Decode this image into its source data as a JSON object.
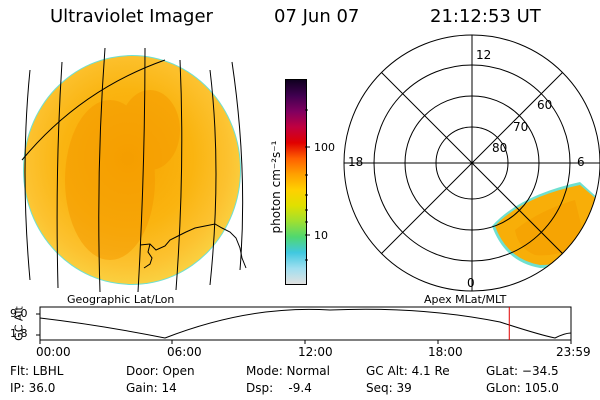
{
  "header": {
    "instrument": "Ultraviolet Imager",
    "date": "07 Jun 07",
    "time": "21:12:53 UT"
  },
  "left_panel": {
    "label": "Geographic Lat/Lon"
  },
  "right_panel": {
    "label": "Apex MLat/MLT",
    "mlt_labels": [
      "12",
      "18",
      "6",
      "0"
    ],
    "mlat_labels": [
      "60",
      "70",
      "80"
    ]
  },
  "colorbar": {
    "unit_label": "photon cm⁻²s⁻¹",
    "tick_labels": [
      "100",
      "10"
    ],
    "scale": "log",
    "colors": [
      "#e0e0e0",
      "#9fdff0",
      "#40c8e0",
      "#50d870",
      "#a0e030",
      "#e0e000",
      "#ffd000",
      "#ffa000",
      "#ff6000",
      "#e00000",
      "#c00040",
      "#800060",
      "#400050",
      "#100020"
    ]
  },
  "altitude_plot": {
    "ylabel": "GC Alt",
    "y_ticks": [
      "9.0",
      "1.8"
    ],
    "x_ticks": [
      "00:00",
      "06:00",
      "12:00",
      "18:00",
      "23:59"
    ],
    "current_time_hours": 21.21
  },
  "info": {
    "flt": "Flt: LBHL",
    "ip": "IP: 36.0",
    "door": "Door: Open",
    "gain": "Gain: 14",
    "mode": "Mode: Normal",
    "dsp": "Dsp:    -9.4",
    "gc_alt": "GC Alt: 4.1 Re",
    "seq": "Seq: 39",
    "glat": "GLat: −34.5",
    "glon": "GLon: 105.0"
  }
}
